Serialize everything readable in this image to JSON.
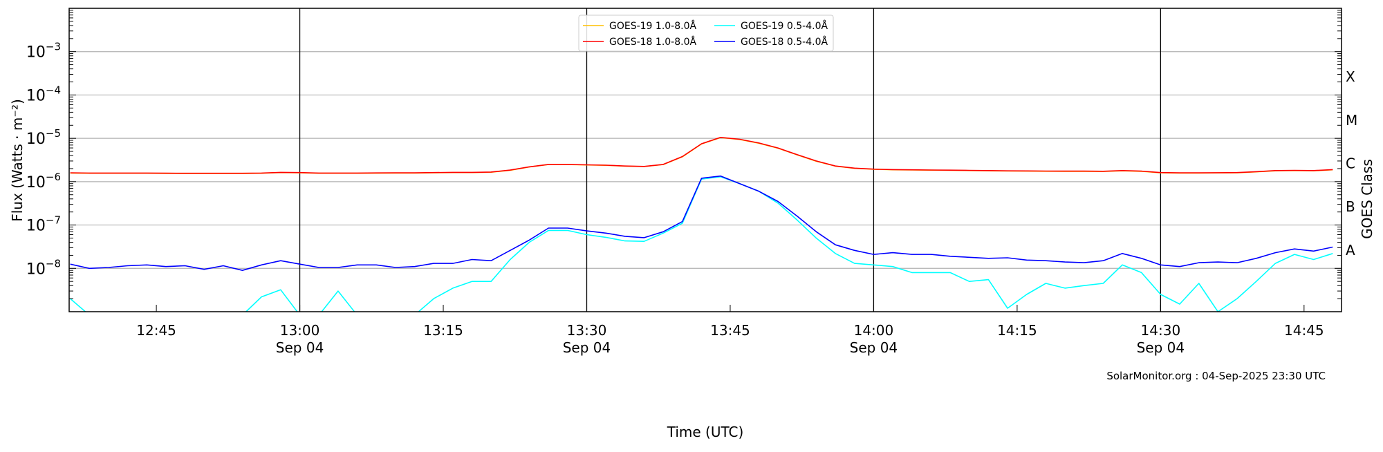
{
  "chart_data": {
    "type": "line",
    "xlabel": "Time (UTC)",
    "ylabel": "Flux (Watts · m⁻²)",
    "ylabel_right": "GOES Class",
    "y_scale": "log",
    "ylim": [
      1e-09,
      0.01
    ],
    "xlim": [
      "12:35:53",
      "14:48:55"
    ],
    "grid": "horizontal at decades",
    "legend_position": "top-center",
    "y_ticks": [
      {
        "value": 0.001,
        "label": "10",
        "exp": "−3"
      },
      {
        "value": 0.0001,
        "label": "10",
        "exp": "−4"
      },
      {
        "value": 1e-05,
        "label": "10",
        "exp": "−5"
      },
      {
        "value": 1e-06,
        "label": "10",
        "exp": "−6"
      },
      {
        "value": 1e-07,
        "label": "10",
        "exp": "−7"
      },
      {
        "value": 1e-08,
        "label": "10",
        "exp": "−8"
      }
    ],
    "x_ticks": [
      {
        "time": "12:45",
        "label": "12:45",
        "sub": ""
      },
      {
        "time": "13:00",
        "label": "13:00",
        "sub": "Sep 04"
      },
      {
        "time": "13:15",
        "label": "13:15",
        "sub": ""
      },
      {
        "time": "13:30",
        "label": "13:30",
        "sub": "Sep 04"
      },
      {
        "time": "13:45",
        "label": "13:45",
        "sub": ""
      },
      {
        "time": "14:00",
        "label": "14:00",
        "sub": "Sep 04"
      },
      {
        "time": "14:15",
        "label": "14:15",
        "sub": ""
      },
      {
        "time": "14:30",
        "label": "14:30",
        "sub": "Sep 04"
      },
      {
        "time": "14:45",
        "label": "14:45",
        "sub": ""
      }
    ],
    "vertical_lines": [
      "13:00",
      "13:30",
      "14:00",
      "14:30"
    ],
    "goes_classes": [
      {
        "label": "A",
        "range": [
          1e-08,
          1e-07
        ]
      },
      {
        "label": "B",
        "range": [
          1e-07,
          1e-06
        ]
      },
      {
        "label": "C",
        "range": [
          1e-06,
          1e-05
        ]
      },
      {
        "label": "M",
        "range": [
          1e-05,
          0.0001
        ]
      },
      {
        "label": "X",
        "range": [
          0.0001,
          0.001
        ]
      }
    ],
    "annotation": "SolarMonitor.org : 04-Sep-2025 23:30 UTC",
    "x": [
      "12:36",
      "12:38",
      "12:40",
      "12:42",
      "12:44",
      "12:46",
      "12:48",
      "12:50",
      "12:52",
      "12:54",
      "12:56",
      "12:58",
      "13:00",
      "13:02",
      "13:04",
      "13:06",
      "13:08",
      "13:10",
      "13:12",
      "13:14",
      "13:16",
      "13:18",
      "13:20",
      "13:22",
      "13:24",
      "13:26",
      "13:28",
      "13:30",
      "13:32",
      "13:34",
      "13:36",
      "13:38",
      "13:40",
      "13:42",
      "13:44",
      "13:46",
      "13:48",
      "13:50",
      "13:52",
      "13:54",
      "13:56",
      "13:58",
      "14:00",
      "14:02",
      "14:04",
      "14:06",
      "14:08",
      "14:10",
      "14:12",
      "14:14",
      "14:16",
      "14:18",
      "14:20",
      "14:22",
      "14:24",
      "14:26",
      "14:28",
      "14:30",
      "14:32",
      "14:34",
      "14:36",
      "14:38",
      "14:40",
      "14:42",
      "14:44",
      "14:46",
      "14:48"
    ],
    "series": [
      {
        "name": "GOES-19 1.0-8.0Å",
        "color": "#ffc000",
        "values": [
          1.58e-06,
          1.56e-06,
          1.56e-06,
          1.56e-06,
          1.56e-06,
          1.55e-06,
          1.54e-06,
          1.54e-06,
          1.54e-06,
          1.54e-06,
          1.56e-06,
          1.62e-06,
          1.6e-06,
          1.56e-06,
          1.56e-06,
          1.56e-06,
          1.57e-06,
          1.58e-06,
          1.58e-06,
          1.6e-06,
          1.62e-06,
          1.62e-06,
          1.65e-06,
          1.83e-06,
          2.18e-06,
          2.48e-06,
          2.48e-06,
          2.43e-06,
          2.38e-06,
          2.28e-06,
          2.23e-06,
          2.48e-06,
          3.75e-06,
          7.4e-06,
          1.04e-05,
          9.4e-06,
          7.7e-06,
          5.9e-06,
          4.15e-06,
          2.95e-06,
          2.28e-06,
          2.03e-06,
          1.93e-06,
          1.88e-06,
          1.86e-06,
          1.84e-06,
          1.82e-06,
          1.8e-06,
          1.78e-06,
          1.76e-06,
          1.75e-06,
          1.74e-06,
          1.73e-06,
          1.73e-06,
          1.72e-06,
          1.78e-06,
          1.73e-06,
          1.6e-06,
          1.58e-06,
          1.58e-06,
          1.59e-06,
          1.6e-06,
          1.68e-06,
          1.78e-06,
          1.8e-06,
          1.78e-06,
          1.88e-06
        ]
      },
      {
        "name": "GOES-18 1.0-8.0Å",
        "color": "#ff0000",
        "values": [
          1.6e-06,
          1.58e-06,
          1.58e-06,
          1.58e-06,
          1.58e-06,
          1.57e-06,
          1.56e-06,
          1.56e-06,
          1.56e-06,
          1.56e-06,
          1.58e-06,
          1.64e-06,
          1.62e-06,
          1.58e-06,
          1.58e-06,
          1.58e-06,
          1.59e-06,
          1.6e-06,
          1.6e-06,
          1.62e-06,
          1.64e-06,
          1.64e-06,
          1.67e-06,
          1.85e-06,
          2.2e-06,
          2.5e-06,
          2.5e-06,
          2.45e-06,
          2.4e-06,
          2.3e-06,
          2.25e-06,
          2.5e-06,
          3.8e-06,
          7.5e-06,
          1.05e-05,
          9.5e-06,
          7.8e-06,
          6e-06,
          4.2e-06,
          3e-06,
          2.3e-06,
          2.05e-06,
          1.95e-06,
          1.9e-06,
          1.88e-06,
          1.86e-06,
          1.84e-06,
          1.82e-06,
          1.8e-06,
          1.78e-06,
          1.77e-06,
          1.76e-06,
          1.75e-06,
          1.75e-06,
          1.74e-06,
          1.8e-06,
          1.75e-06,
          1.62e-06,
          1.6e-06,
          1.6e-06,
          1.61e-06,
          1.62e-06,
          1.7e-06,
          1.8e-06,
          1.82e-06,
          1.8e-06,
          1.9e-06
        ]
      },
      {
        "name": "GOES-19 0.5-4.0Å",
        "color": "#00ffff",
        "values": [
          2e-09,
          5e-10,
          5e-10,
          5e-10,
          5e-10,
          5e-10,
          5e-10,
          5e-10,
          5e-10,
          5e-10,
          2.2e-09,
          3.2e-09,
          5e-10,
          5e-10,
          3e-09,
          5e-10,
          5e-10,
          5e-10,
          5e-10,
          2e-09,
          3.5e-09,
          5e-09,
          5e-09,
          1.6e-08,
          4e-08,
          7.5e-08,
          7.5e-08,
          6e-08,
          5.2e-08,
          4.3e-08,
          4.2e-08,
          6.5e-08,
          1.1e-07,
          1.15e-06,
          1.3e-06,
          9e-07,
          6e-07,
          3.2e-07,
          1.3e-07,
          5e-08,
          2.2e-08,
          1.3e-08,
          1.2e-08,
          1.1e-08,
          8e-09,
          8e-09,
          8e-09,
          5e-09,
          5.5e-09,
          1.2e-09,
          2.5e-09,
          4.5e-09,
          3.5e-09,
          4e-09,
          4.5e-09,
          1.2e-08,
          8e-09,
          2.5e-09,
          1.5e-09,
          4.5e-09,
          1e-09,
          2e-09,
          5e-09,
          1.3e-08,
          2.1e-08,
          1.6e-08,
          2.2e-08
        ]
      },
      {
        "name": "GOES-18 0.5-4.0Å",
        "color": "#0000ff",
        "values": [
          1.25e-08,
          1e-08,
          1.05e-08,
          1.15e-08,
          1.2e-08,
          1.1e-08,
          1.15e-08,
          9.5e-09,
          1.15e-08,
          9e-09,
          1.2e-08,
          1.5e-08,
          1.25e-08,
          1.05e-08,
          1.05e-08,
          1.2e-08,
          1.2e-08,
          1.05e-08,
          1.1e-08,
          1.3e-08,
          1.3e-08,
          1.6e-08,
          1.5e-08,
          2.6e-08,
          4.5e-08,
          8.5e-08,
          8.5e-08,
          7.3e-08,
          6.5e-08,
          5.5e-08,
          5.1e-08,
          7e-08,
          1.2e-07,
          1.2e-06,
          1.35e-06,
          9e-07,
          6e-07,
          3.5e-07,
          1.6e-07,
          7e-08,
          3.5e-08,
          2.6e-08,
          2.1e-08,
          2.3e-08,
          2.1e-08,
          2.1e-08,
          1.9e-08,
          1.8e-08,
          1.7e-08,
          1.75e-08,
          1.55e-08,
          1.5e-08,
          1.4e-08,
          1.35e-08,
          1.5e-08,
          2.2e-08,
          1.7e-08,
          1.2e-08,
          1.1e-08,
          1.35e-08,
          1.4e-08,
          1.35e-08,
          1.7e-08,
          2.3e-08,
          2.8e-08,
          2.5e-08,
          3.1e-08
        ]
      }
    ]
  }
}
